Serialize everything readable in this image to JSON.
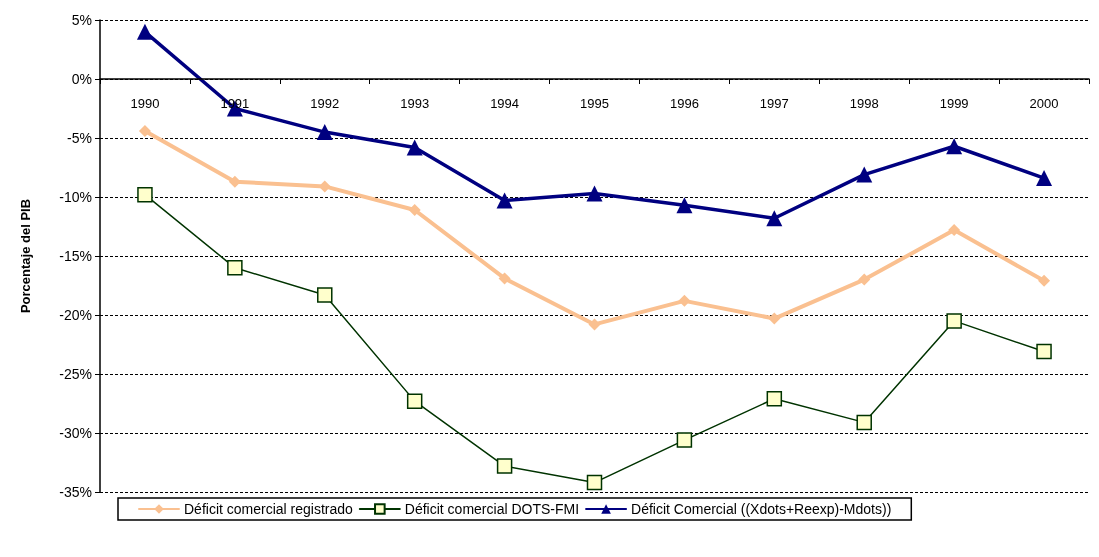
{
  "chart_data": {
    "type": "line",
    "ylabel": "Porcentaje del PIB",
    "categories": [
      "1990",
      "1991",
      "1992",
      "1993",
      "1994",
      "1995",
      "1996",
      "1997",
      "1998",
      "1999",
      "2000"
    ],
    "series": [
      {
        "name": "Déficit comercial registrado",
        "color": "#fac090",
        "marker": "diamond",
        "values": [
          -4.4,
          -8.7,
          -9.1,
          -11.1,
          -16.9,
          -20.8,
          -18.8,
          -20.3,
          -17.0,
          -12.8,
          -17.1
        ]
      },
      {
        "name": "Déficit comercial DOTS-FMI",
        "color": "#003300",
        "marker": "square",
        "values": [
          -9.8,
          -16.0,
          -18.3,
          -27.3,
          -32.8,
          -34.2,
          -30.6,
          -27.1,
          -29.1,
          -20.5,
          -23.1
        ]
      },
      {
        "name": "Déficit Comercial ((Xdots+Reexp)-Mdots))",
        "color": "#000080",
        "marker": "triangle",
        "values": [
          4.0,
          -2.5,
          -4.5,
          -5.8,
          -10.3,
          -9.7,
          -10.7,
          -11.8,
          -8.1,
          -5.7,
          -8.4
        ]
      }
    ],
    "ylim": [
      -35,
      5
    ],
    "yticks": [
      {
        "value": -35,
        "label": "-35%"
      },
      {
        "value": -30,
        "label": "-30%"
      },
      {
        "value": -25,
        "label": "-25%"
      },
      {
        "value": -20,
        "label": "-20%"
      },
      {
        "value": -15,
        "label": "-15%"
      },
      {
        "value": -10,
        "label": "-10%"
      },
      {
        "value": -5,
        "label": "-5%"
      },
      {
        "value": 0,
        "label": "0%"
      },
      {
        "value": 5,
        "label": "5%"
      }
    ],
    "grid": "y",
    "legend": "bottom"
  }
}
